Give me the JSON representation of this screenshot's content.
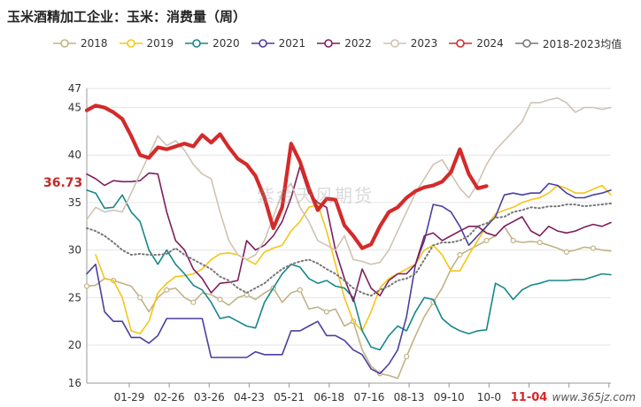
{
  "chart_data": {
    "type": "line",
    "title": "玉米酒精加工企业：玉米：消费量（周）",
    "xlabel": "",
    "ylabel": "",
    "ylim": [
      16,
      47
    ],
    "yticks": [
      16,
      20,
      25,
      30,
      35,
      40,
      45,
      47
    ],
    "xticks": [
      "01-29",
      "02-26",
      "03-26",
      "04-23",
      "05-21",
      "06-18",
      "07-16",
      "08-13",
      "09-10",
      "10-0",
      "11-04",
      "",
      ""
    ],
    "highlight_xtick": "11-04",
    "last_value_label": "36.73",
    "watermark": "紫金天风期货",
    "source_text": "www.365jz.com",
    "grid": "horizontal",
    "legend_position": "top",
    "series": [
      {
        "name": "2018",
        "color": "#c2b285",
        "marker": "circle-open",
        "width": 1.6,
        "values": [
          26.2,
          26.3,
          27.0,
          26.8,
          26.5,
          26.2,
          25.0,
          23.5,
          25.0,
          25.8,
          26.0,
          25.0,
          24.5,
          25.5,
          25.3,
          24.8,
          24.2,
          25.0,
          25.3,
          24.8,
          25.5,
          26.0,
          24.5,
          25.5,
          25.8,
          23.8,
          24.0,
          23.5,
          23.8,
          22.0,
          22.5,
          19.5,
          17.8,
          17.0,
          16.8,
          16.5,
          18.8,
          21.0,
          23.0,
          24.5,
          26.0,
          28.0,
          29.5,
          30.0,
          30.5,
          31.0,
          31.5,
          32.5,
          31.0,
          30.8,
          30.9,
          30.8,
          30.5,
          30.2,
          29.8,
          30.0,
          30.3,
          30.2,
          30.0,
          29.9
        ]
      },
      {
        "name": "2019",
        "color": "#f5c518",
        "marker": "none",
        "width": 1.6,
        "values": [
          null,
          29.5,
          27.0,
          26.8,
          25.0,
          21.5,
          21.2,
          22.5,
          25.5,
          26.5,
          27.2,
          27.3,
          27.5,
          28.0,
          29.0,
          29.6,
          29.7,
          29.5,
          29.0,
          28.5,
          29.8,
          30.2,
          30.5,
          32.0,
          33.0,
          34.5,
          34.8,
          32.0,
          28.5,
          25.0,
          22.5,
          21.5,
          23.5,
          26.0,
          27.0,
          27.5,
          28.0,
          28.5,
          30.0,
          30.5,
          29.5,
          27.8,
          27.8,
          29.5,
          31.0,
          32.5,
          33.8,
          34.2,
          34.5,
          35.0,
          35.3,
          35.5,
          36.0,
          36.8,
          36.5,
          36.0,
          36.0,
          36.4,
          36.8,
          35.8
        ]
      },
      {
        "name": "2020",
        "color": "#17878a",
        "marker": "none",
        "width": 1.6,
        "values": [
          36.3,
          36.0,
          34.4,
          34.5,
          35.8,
          34.0,
          33.0,
          30.0,
          28.5,
          30.0,
          28.5,
          27.5,
          26.3,
          25.8,
          24.5,
          22.8,
          23.0,
          22.5,
          22.0,
          21.8,
          24.5,
          26.0,
          27.5,
          28.5,
          28.2,
          27.0,
          26.5,
          26.8,
          26.2,
          26.0,
          25.0,
          21.5,
          19.8,
          19.5,
          21.0,
          22.0,
          21.5,
          23.5,
          25.0,
          24.8,
          22.8,
          22.0,
          21.5,
          21.2,
          21.5,
          21.6,
          26.5,
          26.0,
          24.8,
          25.8,
          26.3,
          26.5,
          26.8,
          26.8,
          26.8,
          26.9,
          26.9,
          27.2,
          27.5,
          27.4
        ]
      },
      {
        "name": "2021",
        "color": "#4a3fa0",
        "marker": "none",
        "width": 1.6,
        "values": [
          27.5,
          28.5,
          23.5,
          22.5,
          22.5,
          20.8,
          20.8,
          20.2,
          21.0,
          22.8,
          22.8,
          22.8,
          22.8,
          22.8,
          18.7,
          18.7,
          18.7,
          18.7,
          18.7,
          19.3,
          19.0,
          19.0,
          19.0,
          21.5,
          21.5,
          22.0,
          22.5,
          21.0,
          21.0,
          20.5,
          19.5,
          19.0,
          17.5,
          17.0,
          18.0,
          19.5,
          23.0,
          28.5,
          31.0,
          34.8,
          34.6,
          34.0,
          32.5,
          30.5,
          31.5,
          32.5,
          33.5,
          35.8,
          36.0,
          35.8,
          36.0,
          36.0,
          37.0,
          36.8,
          36.0,
          35.5,
          35.5,
          35.8,
          36.0,
          36.3
        ]
      },
      {
        "name": "2022",
        "color": "#7d1e5e",
        "marker": "none",
        "width": 1.6,
        "values": [
          38.0,
          37.5,
          36.8,
          37.3,
          37.2,
          37.2,
          37.3,
          38.1,
          38.0,
          34.0,
          31.0,
          30.0,
          28.0,
          27.0,
          25.5,
          26.5,
          26.6,
          26.8,
          31.0,
          30.0,
          30.5,
          31.5,
          33.0,
          35.5,
          38.8,
          36.0,
          35.0,
          34.5,
          30.0,
          27.0,
          24.6,
          28.0,
          26.0,
          25.2,
          26.8,
          27.5,
          27.5,
          28.5,
          31.5,
          31.8,
          31.0,
          31.5,
          32.0,
          32.5,
          32.5,
          31.8,
          31.5,
          32.5,
          33.0,
          33.5,
          32.0,
          31.5,
          32.5,
          32.0,
          31.8,
          32.0,
          32.4,
          32.7,
          32.5,
          32.9
        ]
      },
      {
        "name": "2023",
        "color": "#cfc3b2",
        "marker": "none",
        "width": 1.6,
        "values": [
          33.2,
          34.5,
          34.0,
          34.2,
          34.0,
          36.0,
          38.0,
          40.0,
          42.0,
          41.0,
          41.5,
          40.5,
          39.0,
          38.0,
          37.5,
          34.0,
          31.0,
          29.5,
          29.0,
          29.5,
          31.0,
          33.5,
          36.0,
          37.0,
          34.5,
          33.0,
          31.0,
          30.5,
          30.0,
          31.5,
          29.0,
          28.8,
          28.5,
          28.7,
          30.0,
          32.0,
          34.0,
          36.0,
          37.5,
          39.0,
          39.5,
          38.0,
          36.5,
          35.5,
          37.0,
          39.0,
          40.5,
          41.5,
          42.5,
          43.5,
          45.5,
          45.5,
          45.8,
          46.0,
          45.5,
          44.5,
          45.0,
          45.0,
          44.8,
          45.0
        ]
      },
      {
        "name": "2024",
        "color": "#d42a2a",
        "marker": "none",
        "width": 4.2,
        "values": [
          44.7,
          45.2,
          45.0,
          44.5,
          43.8,
          42.0,
          40.0,
          39.7,
          40.8,
          40.6,
          40.9,
          41.2,
          40.9,
          42.1,
          41.3,
          42.2,
          40.8,
          39.6,
          39.0,
          37.8,
          35.5,
          32.3,
          34.5,
          41.2,
          39.3,
          36.5,
          34.2,
          35.4,
          35.3,
          32.6,
          31.5,
          30.2,
          30.6,
          32.5,
          34.0,
          34.5,
          35.5,
          36.2,
          36.6,
          36.8,
          37.2,
          38.2,
          40.6,
          38.0,
          36.5,
          36.73
        ]
      },
      {
        "name": "2018-2023均值",
        "color": "#777777",
        "marker": "none",
        "width": 2.0,
        "dash": "1.5 3",
        "values": [
          32.3,
          32.0,
          31.5,
          30.8,
          30.0,
          29.5,
          29.6,
          29.5,
          29.5,
          29.6,
          30.2,
          29.5,
          29.0,
          28.5,
          28.0,
          27.2,
          26.8,
          26.0,
          25.5,
          26.0,
          26.5,
          27.3,
          28.0,
          28.5,
          28.8,
          29.0,
          28.6,
          28.0,
          27.5,
          26.8,
          26.0,
          25.5,
          25.2,
          25.8,
          26.2,
          26.8,
          27.0,
          27.5,
          29.0,
          30.5,
          30.8,
          30.8,
          31.0,
          31.5,
          32.5,
          32.8,
          33.4,
          33.5,
          34.0,
          34.2,
          34.5,
          34.4,
          34.6,
          34.6,
          34.8,
          34.8,
          34.6,
          34.7,
          34.8,
          34.9
        ]
      }
    ]
  }
}
